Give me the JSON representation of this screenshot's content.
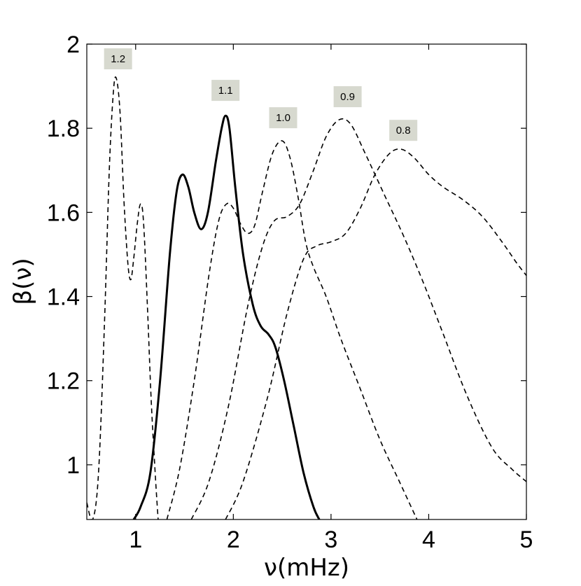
{
  "chart_data": {
    "type": "line",
    "title": "",
    "xlabel": "ν(mHz)",
    "ylabel": "β(ν)",
    "xlim": [
      0.5,
      5
    ],
    "ylim": [
      0.87,
      2
    ],
    "xticks": [
      1,
      2,
      3,
      4,
      5
    ],
    "yticks": [
      1,
      1.2,
      1.4,
      1.6,
      1.8,
      2
    ],
    "xtick_labels": [
      "1",
      "2",
      "3",
      "4",
      "5"
    ],
    "ytick_labels": [
      "1",
      "1.2",
      "1.4",
      "1.6",
      "1.8",
      "2"
    ],
    "grid": false,
    "series": [
      {
        "name": "1.2",
        "style": "dashed",
        "points": [
          [
            0.5,
            0.91
          ],
          [
            0.56,
            0.87
          ],
          [
            0.62,
            0.98
          ],
          [
            0.68,
            1.33
          ],
          [
            0.73,
            1.7
          ],
          [
            0.77,
            1.88
          ],
          [
            0.8,
            1.92
          ],
          [
            0.84,
            1.84
          ],
          [
            0.88,
            1.63
          ],
          [
            0.92,
            1.48
          ],
          [
            0.95,
            1.44
          ],
          [
            0.98,
            1.49
          ],
          [
            1.02,
            1.58
          ],
          [
            1.05,
            1.62
          ],
          [
            1.08,
            1.58
          ],
          [
            1.12,
            1.38
          ],
          [
            1.16,
            1.15
          ],
          [
            1.2,
            0.98
          ],
          [
            1.23,
            0.87
          ]
        ]
      },
      {
        "name": "1.1",
        "style": "solid",
        "points": [
          [
            0.98,
            0.87
          ],
          [
            1.05,
            0.9
          ],
          [
            1.15,
            0.98
          ],
          [
            1.25,
            1.2
          ],
          [
            1.35,
            1.5
          ],
          [
            1.42,
            1.65
          ],
          [
            1.48,
            1.69
          ],
          [
            1.54,
            1.66
          ],
          [
            1.6,
            1.6
          ],
          [
            1.67,
            1.56
          ],
          [
            1.74,
            1.6
          ],
          [
            1.82,
            1.72
          ],
          [
            1.88,
            1.8
          ],
          [
            1.92,
            1.83
          ],
          [
            1.96,
            1.8
          ],
          [
            2.02,
            1.66
          ],
          [
            2.1,
            1.5
          ],
          [
            2.2,
            1.38
          ],
          [
            2.28,
            1.33
          ],
          [
            2.36,
            1.31
          ],
          [
            2.43,
            1.28
          ],
          [
            2.52,
            1.2
          ],
          [
            2.62,
            1.09
          ],
          [
            2.72,
            0.98
          ],
          [
            2.82,
            0.9
          ],
          [
            2.88,
            0.87
          ]
        ]
      },
      {
        "name": "1.0",
        "style": "dashed",
        "points": [
          [
            1.32,
            0.87
          ],
          [
            1.45,
            0.99
          ],
          [
            1.6,
            1.2
          ],
          [
            1.75,
            1.45
          ],
          [
            1.85,
            1.58
          ],
          [
            1.93,
            1.62
          ],
          [
            2.0,
            1.61
          ],
          [
            2.08,
            1.57
          ],
          [
            2.15,
            1.55
          ],
          [
            2.22,
            1.57
          ],
          [
            2.3,
            1.65
          ],
          [
            2.4,
            1.74
          ],
          [
            2.5,
            1.77
          ],
          [
            2.58,
            1.73
          ],
          [
            2.66,
            1.64
          ],
          [
            2.74,
            1.53
          ],
          [
            2.82,
            1.47
          ],
          [
            2.95,
            1.4
          ],
          [
            3.1,
            1.3
          ],
          [
            3.3,
            1.18
          ],
          [
            3.5,
            1.06
          ],
          [
            3.7,
            0.96
          ],
          [
            3.88,
            0.87
          ]
        ]
      },
      {
        "name": "0.9",
        "style": "dashed",
        "points": [
          [
            1.57,
            0.87
          ],
          [
            1.75,
            0.96
          ],
          [
            1.95,
            1.14
          ],
          [
            2.15,
            1.38
          ],
          [
            2.3,
            1.52
          ],
          [
            2.42,
            1.58
          ],
          [
            2.55,
            1.59
          ],
          [
            2.68,
            1.62
          ],
          [
            2.82,
            1.7
          ],
          [
            2.95,
            1.78
          ],
          [
            3.08,
            1.82
          ],
          [
            3.2,
            1.81
          ],
          [
            3.35,
            1.74
          ],
          [
            3.55,
            1.64
          ],
          [
            3.75,
            1.54
          ],
          [
            3.95,
            1.43
          ],
          [
            4.15,
            1.31
          ],
          [
            4.4,
            1.16
          ],
          [
            4.65,
            1.04
          ],
          [
            4.85,
            0.99
          ],
          [
            5.0,
            0.96
          ]
        ]
      },
      {
        "name": "0.8",
        "style": "dashed",
        "points": [
          [
            1.92,
            0.87
          ],
          [
            2.1,
            0.96
          ],
          [
            2.35,
            1.16
          ],
          [
            2.55,
            1.36
          ],
          [
            2.72,
            1.49
          ],
          [
            2.85,
            1.52
          ],
          [
            3.0,
            1.53
          ],
          [
            3.15,
            1.55
          ],
          [
            3.3,
            1.61
          ],
          [
            3.45,
            1.69
          ],
          [
            3.6,
            1.74
          ],
          [
            3.72,
            1.75
          ],
          [
            3.85,
            1.73
          ],
          [
            4.0,
            1.69
          ],
          [
            4.15,
            1.66
          ],
          [
            4.35,
            1.63
          ],
          [
            4.55,
            1.59
          ],
          [
            4.75,
            1.53
          ],
          [
            4.9,
            1.48
          ],
          [
            5.0,
            1.45
          ]
        ]
      }
    ],
    "annotations": [
      {
        "text": "1.2",
        "x": 0.82,
        "y": 1.965
      },
      {
        "text": "1.1",
        "x": 1.92,
        "y": 1.89
      },
      {
        "text": "1.0",
        "x": 2.51,
        "y": 1.825
      },
      {
        "text": "0.9",
        "x": 3.17,
        "y": 1.875
      },
      {
        "text": "0.8",
        "x": 3.74,
        "y": 1.795
      }
    ]
  }
}
